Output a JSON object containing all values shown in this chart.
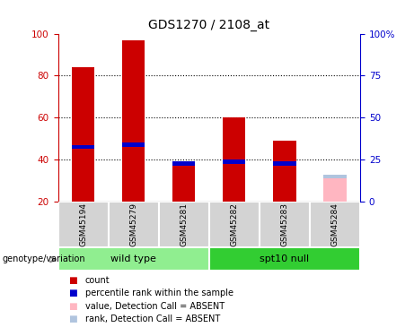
{
  "title": "GDS1270 / 2108_at",
  "samples": [
    "GSM45194",
    "GSM45279",
    "GSM45281",
    "GSM45282",
    "GSM45283",
    "GSM45284"
  ],
  "red_bars": [
    84,
    97,
    39,
    60,
    49,
    0
  ],
  "blue_bars": [
    46,
    47,
    38,
    39,
    38,
    0
  ],
  "absent_red": [
    0,
    0,
    0,
    0,
    0,
    33
  ],
  "absent_blue": [
    0,
    0,
    0,
    0,
    0,
    32
  ],
  "ylim_left": [
    20,
    100
  ],
  "ylim_right": [
    0,
    100
  ],
  "yticks_left": [
    20,
    40,
    60,
    80,
    100
  ],
  "ytick_labels_right": [
    "0",
    "25",
    "50",
    "75",
    "100%"
  ],
  "yticks_right": [
    0,
    25,
    50,
    75,
    100
  ],
  "bar_bottom": 20,
  "group_label": "genotype/variation",
  "wild_type_label": "wild type",
  "spt10_label": "spt10 null",
  "legend_labels": [
    "count",
    "percentile rank within the sample",
    "value, Detection Call = ABSENT",
    "rank, Detection Call = ABSENT"
  ],
  "plot_bg": "#ffffff",
  "red_color": "#cc0000",
  "blue_color": "#0000cc",
  "absent_red_color": "#ffb6c1",
  "absent_blue_color": "#b0c4de",
  "sample_bg": "#d3d3d3",
  "group_wt_color": "#90EE90",
  "group_spt_color": "#32CD32",
  "grid_color": "#000000",
  "left_axis_color": "#cc0000",
  "right_axis_color": "#0000cc"
}
